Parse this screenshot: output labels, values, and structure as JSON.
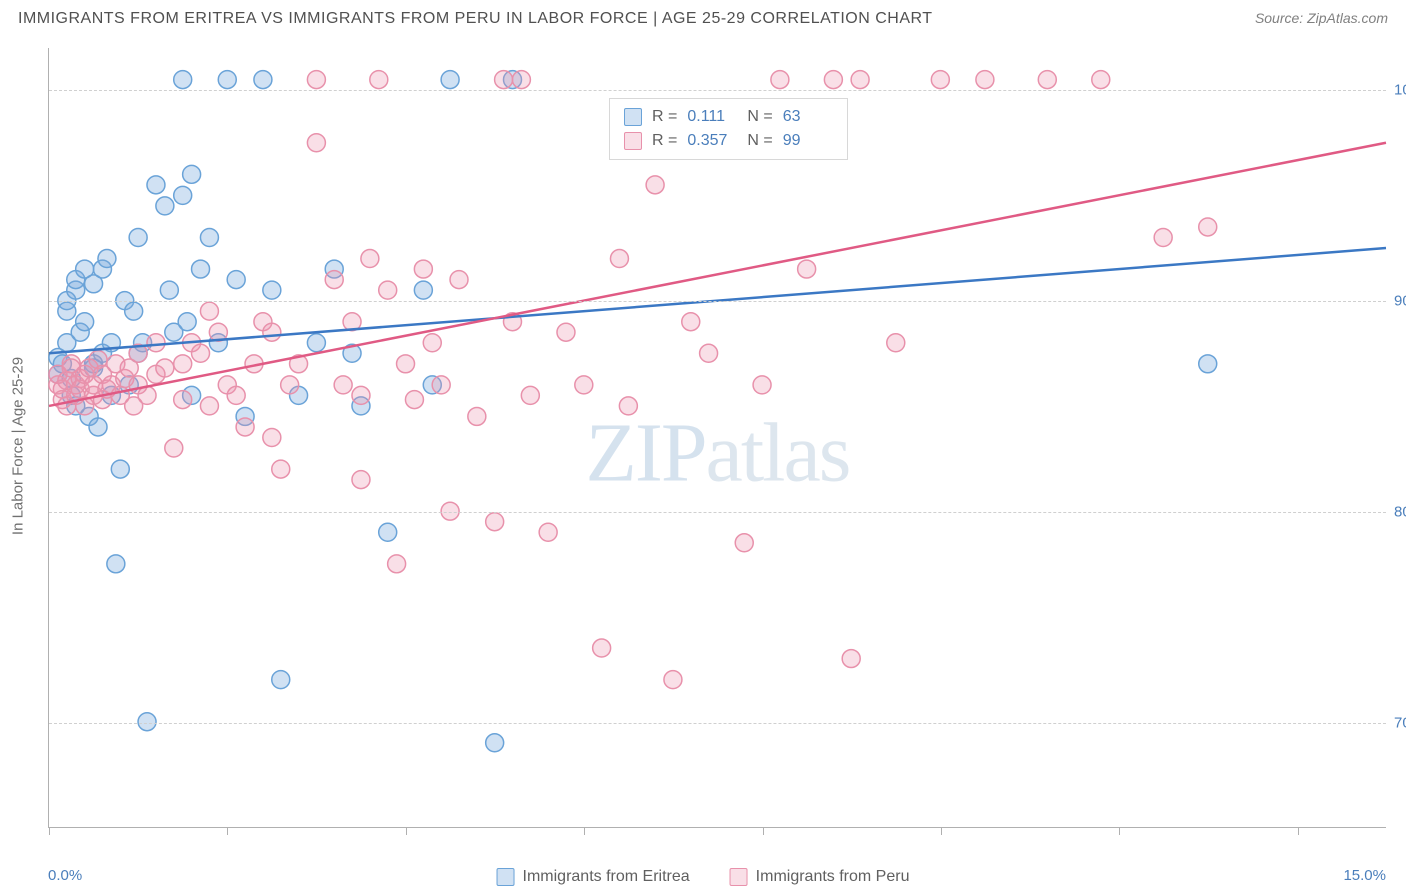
{
  "title": "IMMIGRANTS FROM ERITREA VS IMMIGRANTS FROM PERU IN LABOR FORCE | AGE 25-29 CORRELATION CHART",
  "source": "Source: ZipAtlas.com",
  "y_axis_label": "In Labor Force | Age 25-29",
  "watermark_bold": "ZIP",
  "watermark_thin": "atlas",
  "chart": {
    "type": "scatter",
    "xlim": [
      0,
      15
    ],
    "ylim": [
      65,
      102
    ],
    "x_ticks": [
      0,
      2,
      4,
      6,
      8,
      10,
      12,
      14
    ],
    "y_gridlines": [
      70,
      80,
      90,
      100
    ],
    "y_tick_labels": [
      "70.0%",
      "80.0%",
      "90.0%",
      "100.0%"
    ],
    "x_min_label": "0.0%",
    "x_max_label": "15.0%",
    "background_color": "#ffffff",
    "grid_color": "#d0d0d0",
    "axis_color": "#b0b0b0",
    "tick_label_color": "#4a7ebb",
    "marker_radius": 9,
    "marker_stroke_width": 1.5,
    "line_width": 2.5,
    "series": [
      {
        "name": "Immigrants from Eritrea",
        "color_fill": "rgba(120,170,220,0.35)",
        "color_stroke": "#6aa3d8",
        "line_color": "#3b78c4",
        "R_label": "R =",
        "R": "0.111",
        "N_label": "N =",
        "N": "63",
        "trend": {
          "x1": 0,
          "y1": 87.5,
          "x2": 15,
          "y2": 92.5
        },
        "points": [
          [
            0.1,
            87.3
          ],
          [
            0.1,
            86.5
          ],
          [
            0.15,
            87.0
          ],
          [
            0.2,
            88.0
          ],
          [
            0.2,
            89.5
          ],
          [
            0.2,
            90.0
          ],
          [
            0.25,
            85.5
          ],
          [
            0.25,
            86.3
          ],
          [
            0.3,
            90.5
          ],
          [
            0.3,
            91.0
          ],
          [
            0.3,
            85.0
          ],
          [
            0.35,
            88.5
          ],
          [
            0.4,
            89.0
          ],
          [
            0.4,
            91.5
          ],
          [
            0.45,
            84.5
          ],
          [
            0.5,
            87.0
          ],
          [
            0.5,
            86.8
          ],
          [
            0.5,
            90.8
          ],
          [
            0.55,
            84.0
          ],
          [
            0.6,
            91.5
          ],
          [
            0.6,
            87.5
          ],
          [
            0.65,
            92.0
          ],
          [
            0.7,
            85.5
          ],
          [
            0.7,
            88.0
          ],
          [
            0.75,
            77.5
          ],
          [
            0.8,
            82.0
          ],
          [
            0.85,
            90.0
          ],
          [
            0.9,
            86.0
          ],
          [
            0.95,
            89.5
          ],
          [
            1.0,
            93.0
          ],
          [
            1.0,
            87.5
          ],
          [
            1.05,
            88.0
          ],
          [
            1.1,
            70.0
          ],
          [
            1.2,
            95.5
          ],
          [
            1.3,
            94.5
          ],
          [
            1.35,
            90.5
          ],
          [
            1.4,
            88.5
          ],
          [
            1.5,
            100.5
          ],
          [
            1.5,
            95.0
          ],
          [
            1.55,
            89.0
          ],
          [
            1.6,
            85.5
          ],
          [
            1.6,
            96.0
          ],
          [
            1.7,
            91.5
          ],
          [
            1.8,
            93.0
          ],
          [
            1.9,
            88.0
          ],
          [
            2.0,
            100.5
          ],
          [
            2.1,
            91.0
          ],
          [
            2.2,
            84.5
          ],
          [
            2.4,
            100.5
          ],
          [
            2.5,
            90.5
          ],
          [
            2.6,
            72.0
          ],
          [
            2.8,
            85.5
          ],
          [
            3.0,
            88.0
          ],
          [
            3.2,
            91.5
          ],
          [
            3.4,
            87.5
          ],
          [
            3.5,
            85.0
          ],
          [
            3.8,
            79.0
          ],
          [
            4.2,
            90.5
          ],
          [
            4.3,
            86.0
          ],
          [
            4.5,
            100.5
          ],
          [
            5.0,
            69.0
          ],
          [
            5.2,
            100.5
          ],
          [
            13.0,
            87.0
          ]
        ]
      },
      {
        "name": "Immigrants from Peru",
        "color_fill": "rgba(235,150,175,0.3)",
        "color_stroke": "#e891ab",
        "line_color": "#e05a84",
        "R_label": "R =",
        "R": "0.357",
        "N_label": "N =",
        "N": "99",
        "trend": {
          "x1": 0,
          "y1": 85.0,
          "x2": 15,
          "y2": 97.5
        },
        "points": [
          [
            0.1,
            86.0
          ],
          [
            0.1,
            86.5
          ],
          [
            0.15,
            85.3
          ],
          [
            0.15,
            85.8
          ],
          [
            0.2,
            85.0
          ],
          [
            0.2,
            86.2
          ],
          [
            0.25,
            86.8
          ],
          [
            0.25,
            87.0
          ],
          [
            0.3,
            85.5
          ],
          [
            0.3,
            86.0
          ],
          [
            0.35,
            86.3
          ],
          [
            0.35,
            85.8
          ],
          [
            0.4,
            86.5
          ],
          [
            0.4,
            85.0
          ],
          [
            0.45,
            86.8
          ],
          [
            0.5,
            85.5
          ],
          [
            0.5,
            86.0
          ],
          [
            0.55,
            87.2
          ],
          [
            0.6,
            85.3
          ],
          [
            0.6,
            86.5
          ],
          [
            0.65,
            85.8
          ],
          [
            0.7,
            86.0
          ],
          [
            0.75,
            87.0
          ],
          [
            0.8,
            85.5
          ],
          [
            0.85,
            86.3
          ],
          [
            0.9,
            86.8
          ],
          [
            0.95,
            85.0
          ],
          [
            1.0,
            87.5
          ],
          [
            1.0,
            86.0
          ],
          [
            1.1,
            85.5
          ],
          [
            1.2,
            86.5
          ],
          [
            1.2,
            88.0
          ],
          [
            1.3,
            86.8
          ],
          [
            1.4,
            83.0
          ],
          [
            1.5,
            87.0
          ],
          [
            1.5,
            85.3
          ],
          [
            1.6,
            88.0
          ],
          [
            1.7,
            87.5
          ],
          [
            1.8,
            85.0
          ],
          [
            1.8,
            89.5
          ],
          [
            1.9,
            88.5
          ],
          [
            2.0,
            86.0
          ],
          [
            2.1,
            85.5
          ],
          [
            2.2,
            84.0
          ],
          [
            2.3,
            87.0
          ],
          [
            2.4,
            89.0
          ],
          [
            2.5,
            88.5
          ],
          [
            2.5,
            83.5
          ],
          [
            2.6,
            82.0
          ],
          [
            2.7,
            86.0
          ],
          [
            2.8,
            87.0
          ],
          [
            3.0,
            97.5
          ],
          [
            3.0,
            100.5
          ],
          [
            3.2,
            91.0
          ],
          [
            3.3,
            86.0
          ],
          [
            3.4,
            89.0
          ],
          [
            3.5,
            85.5
          ],
          [
            3.5,
            81.5
          ],
          [
            3.6,
            92.0
          ],
          [
            3.7,
            100.5
          ],
          [
            3.8,
            90.5
          ],
          [
            3.9,
            77.5
          ],
          [
            4.0,
            87.0
          ],
          [
            4.1,
            85.3
          ],
          [
            4.2,
            91.5
          ],
          [
            4.3,
            88.0
          ],
          [
            4.4,
            86.0
          ],
          [
            4.5,
            80.0
          ],
          [
            4.6,
            91.0
          ],
          [
            4.8,
            84.5
          ],
          [
            5.0,
            79.5
          ],
          [
            5.1,
            100.5
          ],
          [
            5.2,
            89.0
          ],
          [
            5.3,
            100.5
          ],
          [
            5.4,
            85.5
          ],
          [
            5.6,
            79.0
          ],
          [
            5.8,
            88.5
          ],
          [
            6.0,
            86.0
          ],
          [
            6.2,
            73.5
          ],
          [
            6.4,
            92.0
          ],
          [
            6.5,
            85.0
          ],
          [
            6.8,
            95.5
          ],
          [
            7.0,
            72.0
          ],
          [
            7.2,
            89.0
          ],
          [
            7.4,
            87.5
          ],
          [
            7.8,
            78.5
          ],
          [
            8.0,
            86.0
          ],
          [
            8.2,
            100.5
          ],
          [
            8.5,
            91.5
          ],
          [
            8.8,
            100.5
          ],
          [
            9.0,
            73.0
          ],
          [
            9.1,
            100.5
          ],
          [
            9.5,
            88.0
          ],
          [
            10.0,
            100.5
          ],
          [
            10.5,
            100.5
          ],
          [
            11.2,
            100.5
          ],
          [
            11.8,
            100.5
          ],
          [
            12.5,
            93.0
          ],
          [
            13.0,
            93.5
          ]
        ]
      }
    ]
  },
  "legend_labels": [
    "Immigrants from Eritrea",
    "Immigrants from Peru"
  ]
}
